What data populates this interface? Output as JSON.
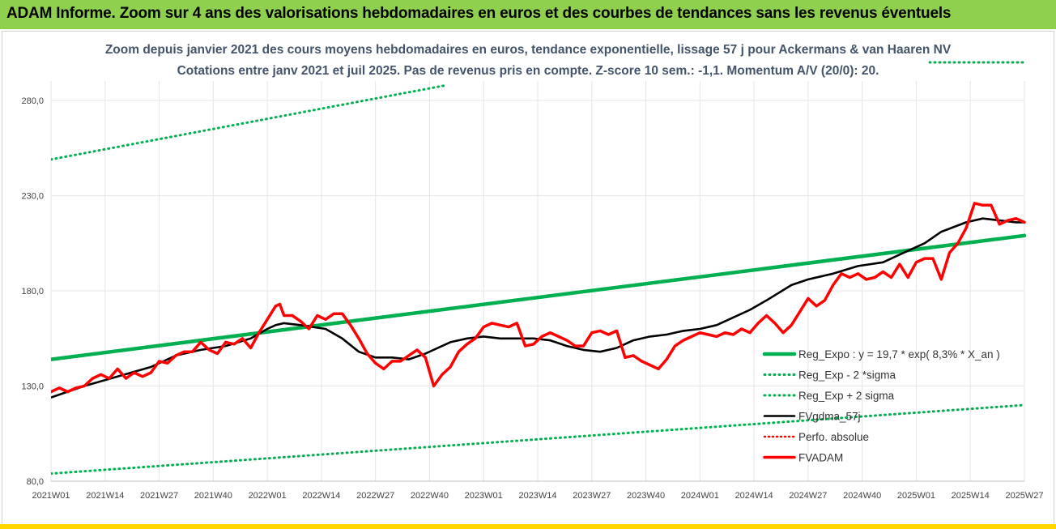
{
  "header": {
    "banner": "ADAM Informe. Zoom sur 4 ans des valorisations hebdomadaires en euros et des courbes de tendances sans les revenus éventuels"
  },
  "colors": {
    "banner_bg": "#8fd14f",
    "reg_expo": "#00b050",
    "fvgdma": "#000000",
    "perfo": "#ff0000",
    "fvadam": "#ff0000",
    "grid": "#e6e6e6"
  },
  "chart_data": {
    "type": "line",
    "title": "Zoom depuis janvier 2021 des cours moyens hebdomadaires en euros, tendance exponentielle, lissage 57 j pour Ackermans & van Haaren NV",
    "subtitle": "Cotations entre janv 2021 et juil 2025. Pas de revenus pris en compte. Z-score 10 sem.: -1,1. Momentum A/V (20/0): 20.",
    "xlabel": "",
    "ylabel": "",
    "ylim": [
      80,
      280
    ],
    "yticks": [
      "80,0",
      "130,0",
      "180,0",
      "230,0",
      "280,0"
    ],
    "ytick_values": [
      80,
      130,
      180,
      230,
      280
    ],
    "xticks": [
      "2021W01",
      "2021W14",
      "2021W27",
      "2021W40",
      "2022W01",
      "2022W14",
      "2022W27",
      "2022W40",
      "2023W01",
      "2023W14",
      "2023W27",
      "2023W40",
      "2024W01",
      "2024W14",
      "2024W27",
      "2024W40",
      "2025W01",
      "2025W14",
      "2025W27"
    ],
    "x_range_weeks": [
      0,
      234
    ],
    "grid": true,
    "legend_position": "right",
    "series": [
      {
        "name": "Reg_Expo : y = 19,7 * exp( 8,3% *  X_an )",
        "style": "solid-thick",
        "x": [
          0,
          234
        ],
        "y": [
          144,
          209
        ]
      },
      {
        "name": "Reg_Exp - 2 *sigma",
        "style": "dotted",
        "x": [
          0,
          234
        ],
        "y": [
          84,
          120
        ]
      },
      {
        "name": "Reg_Exp + 2 sigma",
        "style": "dotted",
        "x": [
          0,
          95
        ],
        "y": [
          249,
          288
        ]
      },
      {
        "name": "FVgdma_57j",
        "style": "solid",
        "x": [
          0,
          8,
          16,
          24,
          30,
          36,
          42,
          48,
          52,
          54,
          56,
          60,
          66,
          70,
          74,
          78,
          82,
          86,
          90,
          96,
          100,
          104,
          108,
          112,
          116,
          120,
          124,
          128,
          132,
          136,
          140,
          144,
          148,
          152,
          156,
          160,
          164,
          168,
          172,
          178,
          182,
          188,
          194,
          200,
          206,
          210,
          214,
          220,
          224,
          228,
          232,
          234
        ],
        "y": [
          124,
          130,
          135,
          140,
          146,
          149,
          151,
          155,
          160,
          162,
          163,
          162,
          160,
          155,
          148,
          145,
          145,
          144,
          147,
          153,
          155,
          156,
          155,
          155,
          155,
          154,
          151,
          149,
          148,
          150,
          154,
          156,
          157,
          159,
          160,
          162,
          166,
          170,
          175,
          183,
          186,
          189,
          193,
          195,
          201,
          205,
          211,
          216,
          218,
          217,
          216,
          216
        ]
      },
      {
        "name": "Perfo. absolue",
        "style": "dotted",
        "x": [],
        "y": []
      },
      {
        "name": "FVADAM",
        "style": "solid-thick",
        "x": [
          0,
          2,
          4,
          6,
          8,
          10,
          12,
          14,
          16,
          18,
          20,
          22,
          24,
          26,
          28,
          30,
          32,
          34,
          36,
          38,
          40,
          42,
          44,
          46,
          48,
          50,
          52,
          54,
          55,
          56,
          58,
          60,
          62,
          64,
          66,
          68,
          70,
          72,
          74,
          76,
          78,
          80,
          82,
          84,
          86,
          88,
          90,
          92,
          94,
          96,
          98,
          100,
          102,
          104,
          106,
          108,
          110,
          112,
          114,
          116,
          118,
          120,
          122,
          124,
          126,
          128,
          130,
          132,
          134,
          136,
          138,
          140,
          142,
          144,
          146,
          148,
          150,
          152,
          154,
          156,
          158,
          160,
          162,
          164,
          166,
          168,
          170,
          172,
          174,
          176,
          178,
          180,
          182,
          184,
          186,
          188,
          190,
          192,
          194,
          196,
          198,
          200,
          202,
          204,
          206,
          208,
          210,
          212,
          214,
          216,
          218,
          220,
          222,
          224,
          226,
          228,
          230,
          232,
          234
        ],
        "y": [
          127,
          129,
          127,
          129,
          130,
          134,
          136,
          134,
          139,
          134,
          137,
          135,
          137,
          143,
          142,
          146,
          148,
          148,
          153,
          149,
          147,
          153,
          152,
          155,
          150,
          158,
          165,
          172,
          173,
          167,
          167,
          164,
          160,
          167,
          165,
          168,
          168,
          162,
          155,
          147,
          142,
          139,
          143,
          143,
          146,
          149,
          145,
          130,
          136,
          140,
          148,
          152,
          155,
          161,
          163,
          162,
          161,
          163,
          151,
          152,
          156,
          158,
          156,
          154,
          151,
          151,
          158,
          159,
          157,
          159,
          145,
          146,
          143,
          141,
          139,
          144,
          151,
          154,
          156,
          158,
          157,
          156,
          158,
          157,
          160,
          158,
          163,
          167,
          163,
          158,
          162,
          169,
          176,
          172,
          175,
          183,
          189,
          187,
          189,
          186,
          187,
          190,
          187,
          194,
          187,
          195,
          197,
          197,
          186,
          200,
          205,
          213,
          226,
          225,
          225,
          215,
          217,
          218,
          216
        ]
      }
    ]
  }
}
